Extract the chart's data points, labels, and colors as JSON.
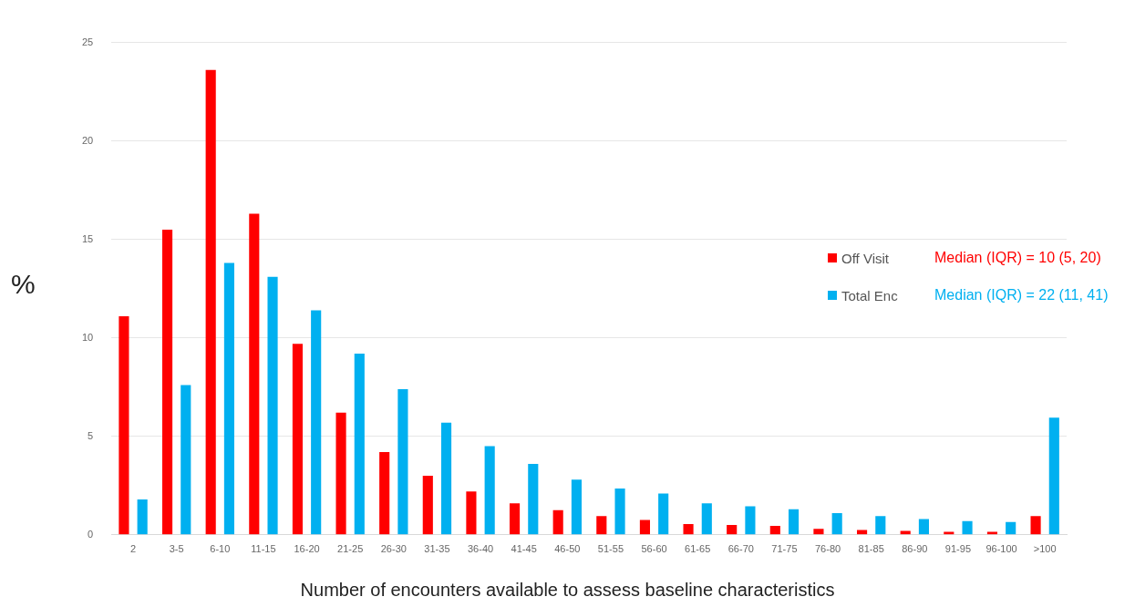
{
  "chart_data": {
    "type": "bar",
    "xlabel": "Number of encounters available to assess baseline characteristics",
    "ylabel": "%",
    "categories": [
      "2",
      "3-5",
      "6-10",
      "11-15",
      "16-20",
      "21-25",
      "26-30",
      "31-35",
      "36-40",
      "41-45",
      "46-50",
      "51-55",
      "56-60",
      "61-65",
      "66-70",
      "71-75",
      "76-80",
      "81-85",
      "86-90",
      "91-95",
      "96-100",
      ">100"
    ],
    "series": [
      {
        "name": "Off Visit",
        "color": "#ff0000",
        "values": [
          11.1,
          15.5,
          23.6,
          16.3,
          9.7,
          6.2,
          4.2,
          3.0,
          2.2,
          1.6,
          1.25,
          0.95,
          0.75,
          0.55,
          0.5,
          0.45,
          0.3,
          0.25,
          0.2,
          0.15,
          0.15,
          0.95
        ]
      },
      {
        "name": "Total Enc",
        "color": "#00b0f0",
        "values": [
          1.8,
          7.6,
          13.8,
          13.1,
          11.4,
          9.2,
          7.4,
          5.7,
          4.5,
          3.6,
          2.8,
          2.35,
          2.1,
          1.6,
          1.45,
          1.3,
          1.1,
          0.95,
          0.8,
          0.7,
          0.65,
          5.95
        ]
      }
    ],
    "annotations": [
      "Median (IQR) = 10 (5, 20)",
      "Median (IQR) = 22 (11, 41)"
    ],
    "ylim": [
      0,
      25
    ],
    "yticks": [
      0,
      5,
      10,
      15,
      20,
      25
    ],
    "grid": "y",
    "legend": "right"
  }
}
